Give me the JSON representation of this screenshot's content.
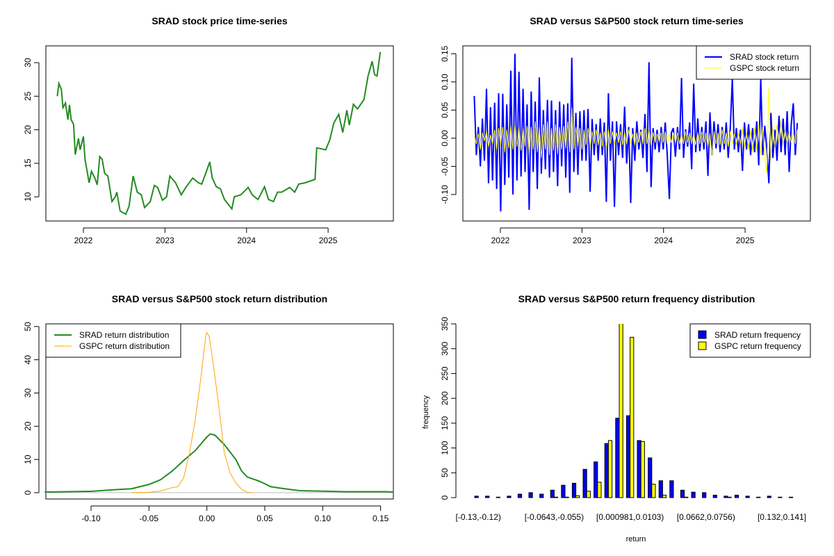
{
  "chart_data": [
    {
      "type": "line",
      "title": "SRAD stock price time-series",
      "xlabel": "",
      "ylabel": "",
      "xlim": [
        2021.54,
        2025.8
      ],
      "ylim": [
        6.4,
        32.5
      ],
      "x_ticks": [
        2022,
        2023,
        2024,
        2025
      ],
      "x_tick_labels": [
        "2022",
        "2023",
        "2024",
        "2025"
      ],
      "y_ticks": [
        10,
        15,
        20,
        25,
        30
      ],
      "y_tick_labels": [
        "10",
        "15",
        "20",
        "25",
        "30"
      ],
      "series": [
        {
          "name": "SRAD price",
          "color": "#228B22",
          "x": [
            2021.68,
            2021.7,
            2021.73,
            2021.75,
            2021.78,
            2021.81,
            2021.83,
            2021.85,
            2021.88,
            2021.9,
            2021.94,
            2021.96,
            2022.0,
            2022.02,
            2022.05,
            2022.07,
            2022.1,
            2022.14,
            2022.17,
            2022.2,
            2022.23,
            2022.26,
            2022.3,
            2022.35,
            2022.39,
            2022.41,
            2022.45,
            2022.52,
            2022.56,
            2022.61,
            2022.66,
            2022.71,
            2022.75,
            2022.82,
            2022.87,
            2022.91,
            2022.97,
            2023.02,
            2023.06,
            2023.13,
            2023.2,
            2023.26,
            2023.34,
            2023.41,
            2023.45,
            2023.5,
            2023.55,
            2023.58,
            2023.63,
            2023.68,
            2023.73,
            2023.82,
            2023.85,
            2023.93,
            2024.02,
            2024.07,
            2024.14,
            2024.22,
            2024.27,
            2024.33,
            2024.38,
            2024.43,
            2024.53,
            2024.59,
            2024.64,
            2024.72,
            2024.84,
            2024.86,
            2024.94,
            2024.97,
            2025.02,
            2025.07,
            2025.13,
            2025.18,
            2025.23,
            2025.26,
            2025.31,
            2025.36,
            2025.44,
            2025.49,
            2025.54,
            2025.57,
            2025.6,
            2025.64
          ],
          "y": [
            25.0,
            26.9,
            26.0,
            23.3,
            24.0,
            21.5,
            23.7,
            21.5,
            20.8,
            16.3,
            18.7,
            17.0,
            19.0,
            15.6,
            13.5,
            12.1,
            13.8,
            12.8,
            11.8,
            16.0,
            15.6,
            13.5,
            13.1,
            9.3,
            10.0,
            10.7,
            7.9,
            7.4,
            8.6,
            13.1,
            10.7,
            10.3,
            8.4,
            9.3,
            11.7,
            11.4,
            9.5,
            10.0,
            13.1,
            12.1,
            10.3,
            11.5,
            12.8,
            12.1,
            11.9,
            13.5,
            15.2,
            12.8,
            11.5,
            11.2,
            9.6,
            8.2,
            10.0,
            10.3,
            11.4,
            10.3,
            9.6,
            11.5,
            9.6,
            9.3,
            10.7,
            10.7,
            11.4,
            10.7,
            11.9,
            12.1,
            12.6,
            17.3,
            17.1,
            17.0,
            18.5,
            21.0,
            22.3,
            19.6,
            22.9,
            20.7,
            23.8,
            23.1,
            24.5,
            28.0,
            30.2,
            28.2,
            28.0,
            31.6
          ]
        }
      ]
    },
    {
      "type": "line",
      "title": "SRAD versus S&P500 stock return time-series",
      "xlabel": "",
      "ylabel": "",
      "xlim": [
        2021.54,
        2025.8
      ],
      "ylim": [
        -0.147,
        0.164
      ],
      "x_ticks": [
        2022,
        2023,
        2024,
        2025
      ],
      "x_tick_labels": [
        "2022",
        "2023",
        "2024",
        "2025"
      ],
      "y_ticks": [
        -0.1,
        -0.05,
        0.0,
        0.05,
        0.1,
        0.15
      ],
      "y_tick_labels": [
        "-0.10",
        "-0.05",
        "0.00",
        "0.05",
        "0.10",
        "0.15"
      ],
      "x_start": 2021.68,
      "x_end": 2025.64,
      "legend": {
        "position": "top-right",
        "entries": [
          "SRAD stock return",
          "GSPC stock return"
        ]
      },
      "series": [
        {
          "name": "SRAD stock return",
          "color": "#0000FF",
          "values": [
            0.075,
            -0.03,
            0.02,
            -0.05,
            0.035,
            -0.04,
            0.088,
            -0.08,
            0.055,
            -0.075,
            0.063,
            -0.09,
            0.08,
            -0.13,
            0.079,
            -0.083,
            0.06,
            -0.07,
            0.12,
            -0.1,
            0.15,
            -0.075,
            0.118,
            -0.068,
            0.088,
            -0.06,
            0.06,
            -0.127,
            0.083,
            -0.06,
            0.065,
            -0.09,
            0.108,
            -0.063,
            0.05,
            -0.055,
            0.068,
            -0.07,
            0.067,
            -0.06,
            0.05,
            -0.085,
            0.065,
            -0.05,
            0.06,
            -0.07,
            0.062,
            -0.097,
            0.143,
            -0.06,
            0.045,
            -0.065,
            0.048,
            -0.04,
            0.05,
            -0.04,
            0.052,
            -0.095,
            0.034,
            -0.03,
            0.025,
            -0.04,
            0.035,
            -0.03,
            0.028,
            -0.113,
            0.08,
            -0.04,
            0.03,
            -0.122,
            0.03,
            -0.03,
            0.025,
            -0.035,
            0.056,
            -0.045,
            0.02,
            -0.115,
            0.018,
            -0.04,
            0.03,
            -0.02,
            0.015,
            -0.035,
            0.043,
            -0.06,
            0.135,
            -0.087,
            0.018,
            -0.02,
            0.015,
            -0.025,
            0.02,
            -0.02,
            0.028,
            -0.03,
            -0.108,
            0.01,
            0.018,
            -0.033,
            0.02,
            -0.02,
            0.107,
            -0.035,
            0.016,
            -0.015,
            0.028,
            -0.055,
            0.097,
            -0.025,
            0.035,
            -0.023,
            0.02,
            -0.02,
            0.03,
            -0.067,
            0.046,
            -0.03,
            0.03,
            -0.018,
            0.025,
            -0.025,
            0.02,
            -0.02,
            0.028,
            -0.035,
            0.019,
            0.105,
            -0.02,
            0.018,
            -0.025,
            0.015,
            -0.058,
            0.028,
            -0.02,
            0.025,
            -0.03,
            0.018,
            -0.025,
            0.03,
            -0.048,
            0.105,
            -0.03,
            0.022,
            -0.02,
            -0.08,
            0.045,
            -0.035,
            0.015,
            -0.04,
            0.04,
            -0.025,
            0.035,
            -0.03,
            0.048,
            -0.06,
            0.025,
            0.062,
            -0.03,
            0.027
          ]
        },
        {
          "name": "GSPC stock return",
          "color": "#FFFF00",
          "values": [
            0.005,
            -0.01,
            0.008,
            -0.02,
            0.01,
            -0.005,
            0.012,
            -0.015,
            0.006,
            -0.01,
            0.015,
            -0.02,
            0.018,
            -0.012,
            0.02,
            -0.025,
            0.015,
            -0.018,
            0.022,
            -0.02,
            0.025,
            -0.015,
            0.02,
            -0.022,
            0.018,
            -0.015,
            0.022,
            -0.028,
            0.02,
            -0.02,
            0.03,
            -0.025,
            0.02,
            -0.035,
            0.025,
            -0.02,
            0.03,
            -0.03,
            0.018,
            -0.022,
            0.025,
            -0.028,
            0.02,
            -0.02,
            0.022,
            -0.018,
            0.03,
            -0.025,
            0.055,
            -0.02,
            0.02,
            -0.015,
            0.018,
            -0.02,
            0.015,
            -0.012,
            0.018,
            -0.015,
            0.012,
            -0.01,
            0.015,
            -0.012,
            0.01,
            -0.015,
            0.012,
            -0.018,
            0.015,
            -0.01,
            0.012,
            -0.012,
            0.01,
            -0.008,
            0.012,
            -0.012,
            0.01,
            -0.01,
            0.015,
            -0.01,
            0.008,
            -0.012,
            0.01,
            -0.008,
            0.012,
            -0.01,
            0.018,
            -0.01,
            0.015,
            -0.012,
            0.01,
            -0.008,
            0.008,
            -0.006,
            0.01,
            -0.008,
            0.012,
            -0.01,
            0.008,
            -0.008,
            0.01,
            -0.008,
            0.01,
            -0.01,
            0.008,
            -0.01,
            0.012,
            -0.008,
            0.01,
            -0.01,
            0.008,
            -0.012,
            0.01,
            -0.01,
            0.012,
            -0.008,
            0.01,
            -0.015,
            0.008,
            -0.03,
            0.012,
            -0.01,
            0.01,
            -0.012,
            0.015,
            -0.01,
            0.01,
            -0.015,
            0.012,
            -0.01,
            0.008,
            -0.012,
            0.01,
            -0.01,
            0.02,
            -0.015,
            0.01,
            -0.02,
            0.015,
            -0.025,
            0.02,
            -0.02,
            0.025,
            -0.03,
            0.02,
            -0.035,
            -0.062,
            0.09,
            -0.04,
            0.02,
            -0.015,
            0.025,
            -0.01,
            0.033,
            -0.012,
            0.015,
            -0.01,
            0.012,
            -0.008,
            0.01,
            -0.01,
            0.015
          ]
        }
      ]
    },
    {
      "type": "line",
      "title": "SRAD versus S&P500 stock return distribution",
      "xlabel": "",
      "ylabel": "",
      "xlim": [
        -0.139,
        0.161
      ],
      "ylim": [
        -1.9,
        50.8
      ],
      "x_ticks": [
        -0.1,
        -0.05,
        0.0,
        0.05,
        0.1,
        0.15
      ],
      "x_tick_labels": [
        "-0.10",
        "-0.05",
        "0.00",
        "0.05",
        "0.10",
        "0.15"
      ],
      "y_ticks": [
        0,
        10,
        20,
        30,
        40,
        50
      ],
      "y_tick_labels": [
        "0",
        "10",
        "20",
        "30",
        "40",
        "50"
      ],
      "legend": {
        "position": "top-left",
        "entries": [
          "SRAD return distribution",
          "GSPC return distribution"
        ]
      },
      "series": [
        {
          "name": "SRAD return distribution",
          "color": "#228B22",
          "x": [
            -0.14,
            -0.1,
            -0.08,
            -0.065,
            -0.05,
            -0.04,
            -0.03,
            -0.02,
            -0.01,
            -0.005,
            0.0,
            0.003,
            0.007,
            0.015,
            0.025,
            0.03,
            0.035,
            0.045,
            0.05,
            0.055,
            0.065,
            0.08,
            0.1,
            0.12,
            0.155,
            0.161
          ],
          "y": [
            0.2,
            0.4,
            0.9,
            1.2,
            2.5,
            3.9,
            6.5,
            9.7,
            12.7,
            14.7,
            16.8,
            17.7,
            17.3,
            14.5,
            10.0,
            6.5,
            4.7,
            3.5,
            2.7,
            1.8,
            1.3,
            0.6,
            0.45,
            0.3,
            0.3,
            0.2
          ]
        },
        {
          "name": "GSPC return distribution",
          "color": "#FFA500",
          "x": [
            -0.065,
            -0.05,
            -0.04,
            -0.03,
            -0.025,
            -0.02,
            -0.015,
            -0.01,
            -0.005,
            -0.001,
            0.0,
            0.002,
            0.005,
            0.01,
            0.015,
            0.02,
            0.025,
            0.03,
            0.035,
            0.04
          ],
          "y": [
            0.05,
            0.1,
            0.5,
            1.5,
            1.8,
            4.5,
            12,
            22,
            35,
            47,
            48.2,
            47,
            40,
            27,
            12,
            6,
            3,
            1,
            0.1,
            0
          ]
        }
      ],
      "reference_line": {
        "y": 0,
        "color": "#BEBEBE"
      }
    },
    {
      "type": "bar",
      "title": "SRAD versus S&P500 return frequency distribution",
      "xlabel": "return",
      "ylabel": "frequency",
      "ylim": [
        0,
        350
      ],
      "y_ticks": [
        0,
        50,
        100,
        150,
        200,
        250,
        300,
        350
      ],
      "y_tick_labels": [
        "0",
        "50",
        "100",
        "150",
        "200",
        "250",
        "300",
        "350"
      ],
      "bin_count": 30,
      "shown_category_labels": [
        {
          "bin": 0,
          "label": "[-0.13,-0.12)"
        },
        {
          "bin": 7,
          "label": "[-0.0643,-0.055)"
        },
        {
          "bin": 14,
          "label": "[0.000981,0.0103)"
        },
        {
          "bin": 21,
          "label": "[0.0662,0.0756)"
        },
        {
          "bin": 28,
          "label": "[0.132,0.141]"
        }
      ],
      "legend": {
        "position": "top-right",
        "entries": [
          "SRAD return frequency",
          "GSPC return frequency"
        ]
      },
      "series": [
        {
          "name": "SRAD return frequency",
          "color": "#0000FF",
          "values": [
            3,
            3,
            1,
            3,
            7,
            10,
            7,
            15,
            25,
            29,
            57,
            72,
            109,
            160,
            165,
            115,
            80,
            34,
            34,
            15,
            11,
            10,
            5,
            3,
            5,
            3,
            1,
            3,
            1,
            1
          ]
        },
        {
          "name": "GSPC return frequency",
          "color": "#FFFF00",
          "values": [
            0,
            0,
            0,
            0,
            0,
            0,
            0,
            1,
            1,
            4,
            13,
            31,
            115,
            355,
            323,
            113,
            27,
            5,
            0,
            1,
            0,
            0,
            0,
            1,
            0,
            0,
            0,
            0,
            0,
            0
          ]
        }
      ]
    }
  ]
}
